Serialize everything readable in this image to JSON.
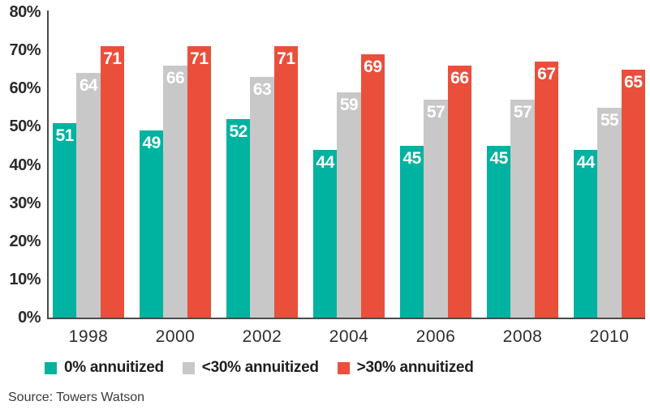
{
  "chart_data": {
    "type": "bar",
    "categories": [
      "1998",
      "2000",
      "2002",
      "2004",
      "2006",
      "2008",
      "2010"
    ],
    "series": [
      {
        "name": "0% annuitized",
        "color": "#00B2A0",
        "values": [
          51,
          49,
          52,
          44,
          45,
          45,
          44
        ]
      },
      {
        "name": "<30% annuitized",
        "color": "#C8C8C8",
        "values": [
          64,
          66,
          63,
          59,
          57,
          57,
          55
        ]
      },
      {
        "name": ">30% annuitized",
        "color": "#EA4F3B",
        "values": [
          71,
          71,
          71,
          69,
          66,
          67,
          65
        ]
      }
    ],
    "ylim": [
      0,
      80
    ],
    "yticks": [
      0,
      10,
      20,
      30,
      40,
      50,
      60,
      70,
      80
    ],
    "ytick_suffix": "%",
    "grid": false,
    "legend_position": "bottom",
    "value_labels": true,
    "value_label_color": "#ffffff",
    "axis_color": "#4a4a4a"
  },
  "source": "Source: Towers Watson"
}
